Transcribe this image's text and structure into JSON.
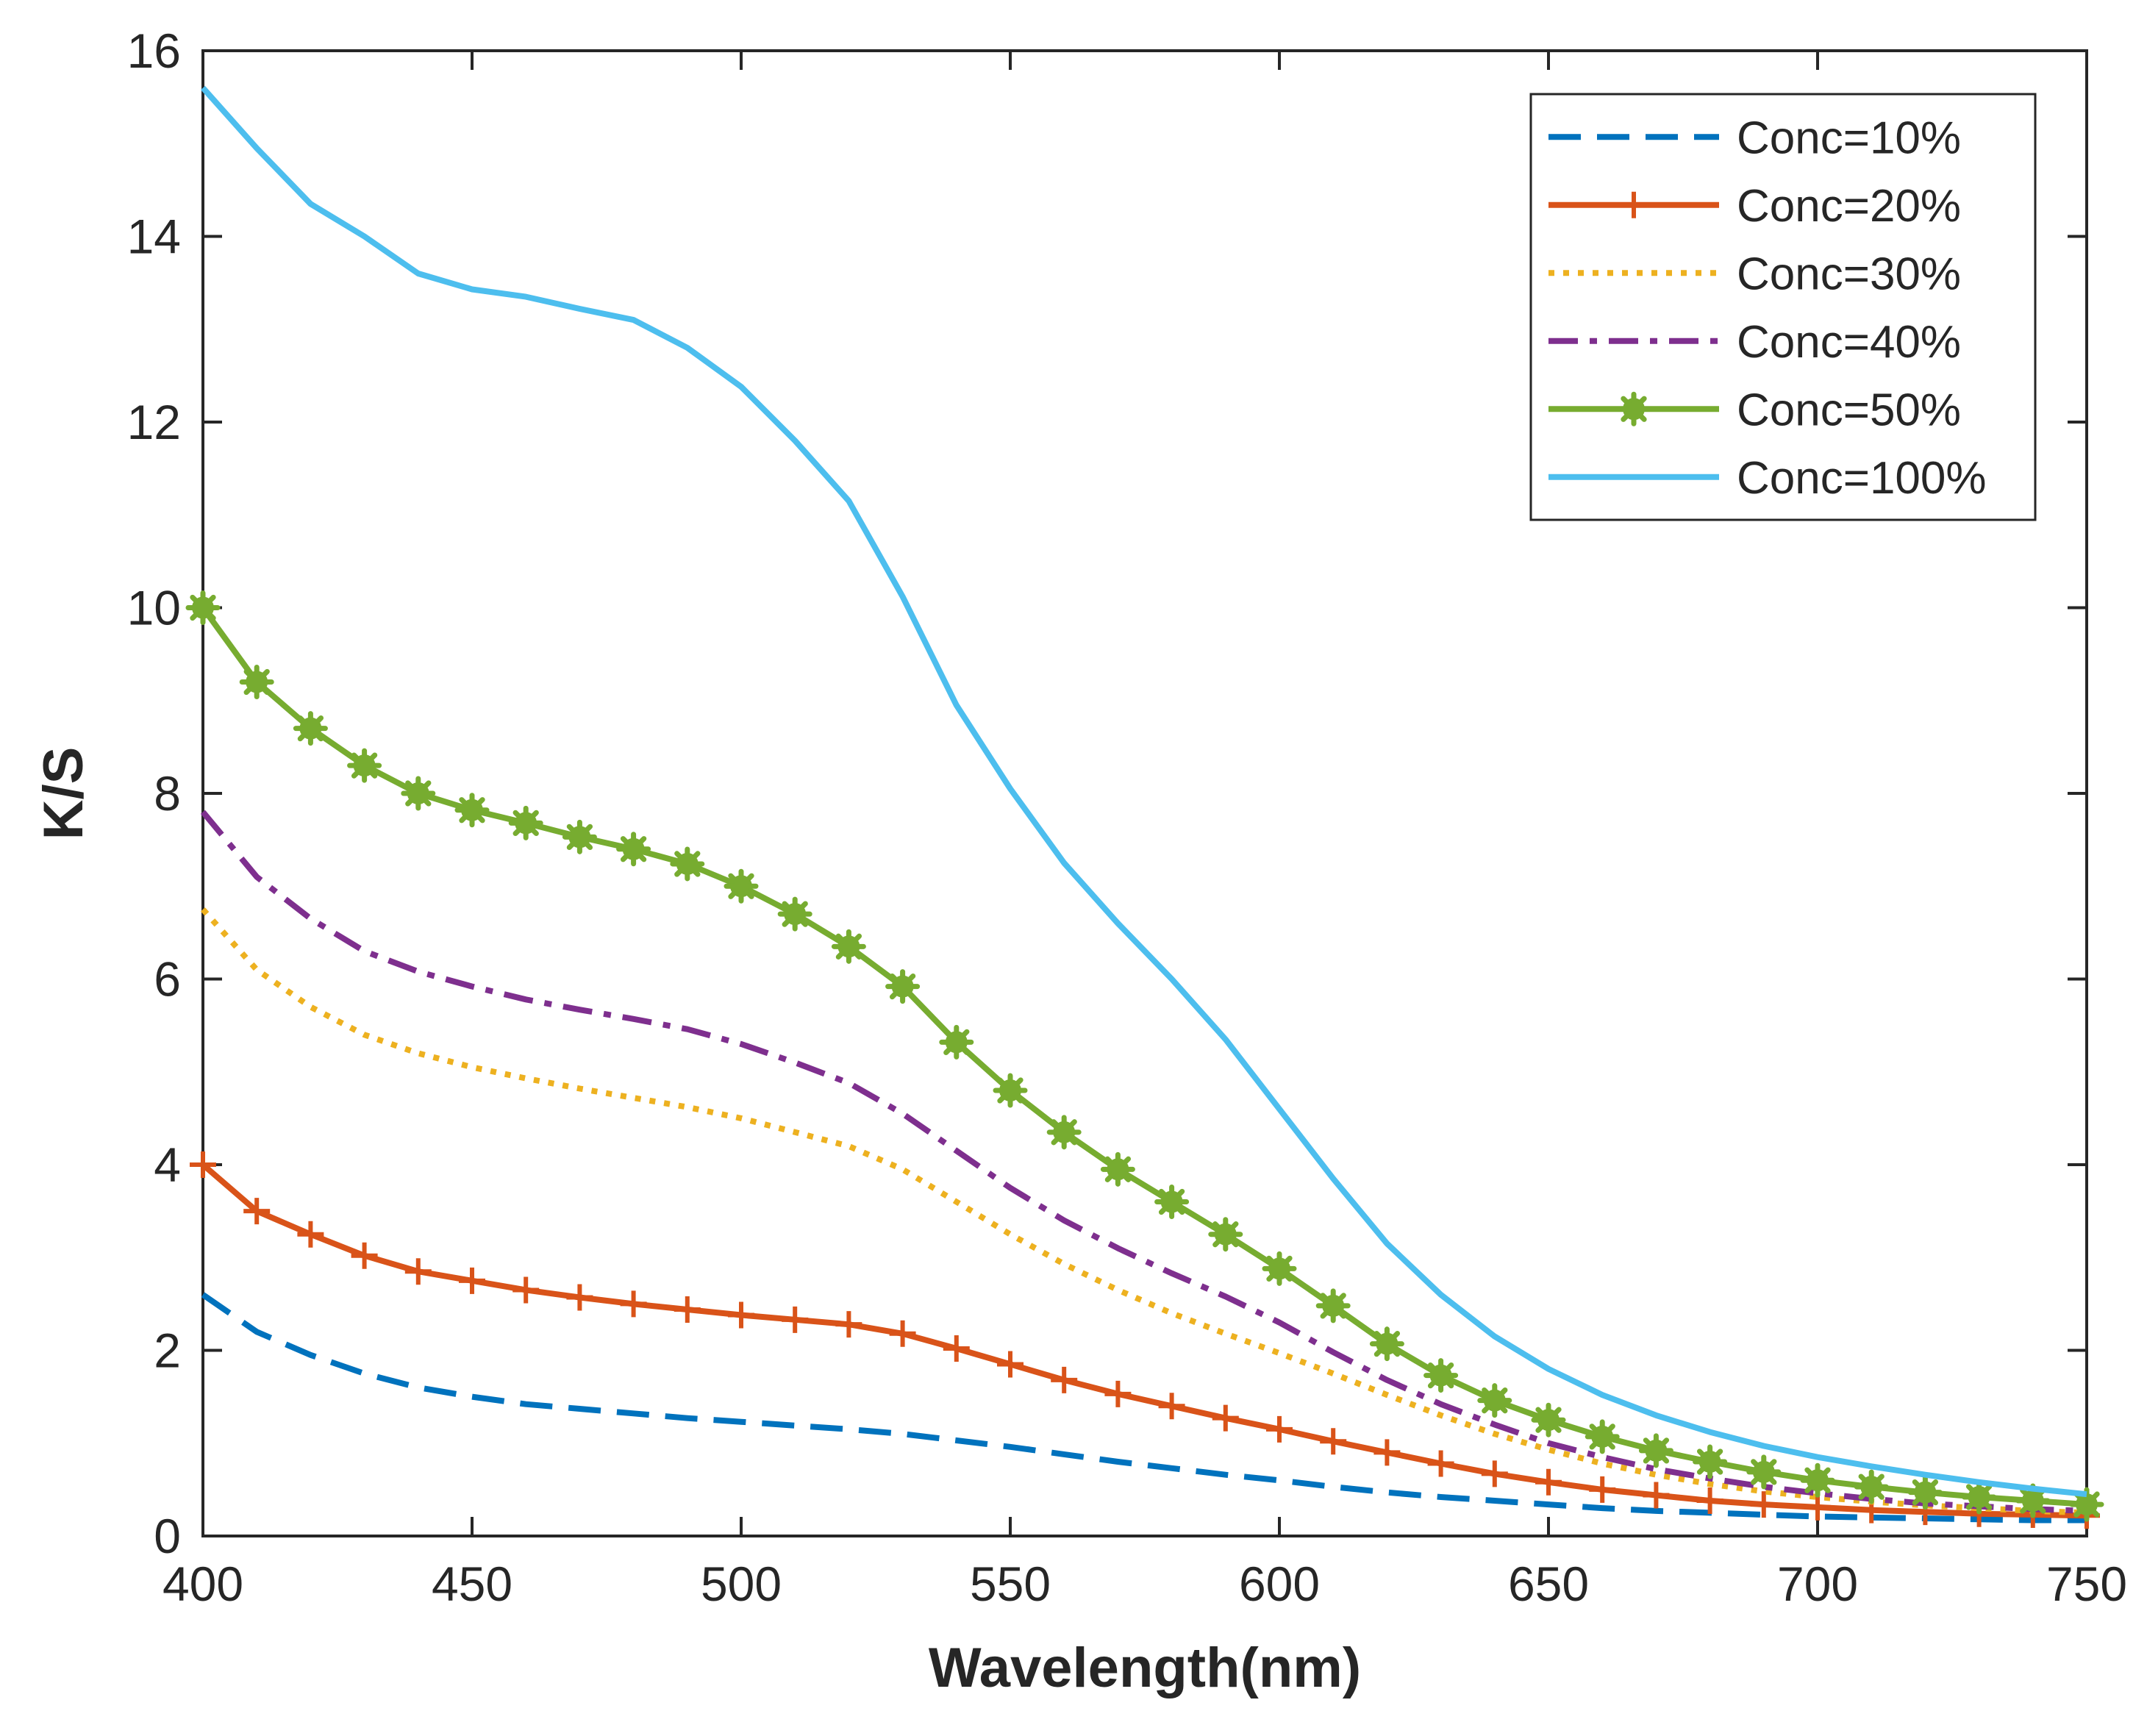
{
  "chart_data": {
    "type": "line",
    "title": "",
    "xlabel": "Wavelength(nm)",
    "ylabel": "K/S",
    "xlim": [
      400,
      750
    ],
    "ylim": [
      0,
      16
    ],
    "xticks": [
      400,
      450,
      500,
      550,
      600,
      650,
      700,
      750
    ],
    "yticks": [
      0,
      2,
      4,
      6,
      8,
      10,
      12,
      14,
      16
    ],
    "grid": false,
    "legend_position": "top-right",
    "x": [
      400,
      410,
      420,
      430,
      440,
      450,
      460,
      470,
      480,
      490,
      500,
      510,
      520,
      530,
      540,
      550,
      560,
      570,
      580,
      590,
      600,
      610,
      620,
      630,
      640,
      650,
      660,
      670,
      680,
      690,
      700,
      710,
      720,
      730,
      740,
      750
    ],
    "series": [
      {
        "name": "Conc=10%",
        "color": "#0072BD",
        "style": "dashed",
        "marker": "none",
        "values": [
          2.6,
          2.2,
          1.95,
          1.75,
          1.6,
          1.5,
          1.42,
          1.37,
          1.32,
          1.27,
          1.23,
          1.19,
          1.15,
          1.1,
          1.03,
          0.96,
          0.88,
          0.8,
          0.73,
          0.66,
          0.6,
          0.53,
          0.47,
          0.42,
          0.38,
          0.34,
          0.3,
          0.27,
          0.25,
          0.23,
          0.21,
          0.2,
          0.19,
          0.18,
          0.17,
          0.17
        ]
      },
      {
        "name": "Conc=20%",
        "color": "#D95319",
        "style": "solid",
        "marker": "plus",
        "values": [
          4.0,
          3.5,
          3.25,
          3.02,
          2.85,
          2.75,
          2.65,
          2.57,
          2.5,
          2.44,
          2.38,
          2.33,
          2.28,
          2.18,
          2.02,
          1.85,
          1.68,
          1.53,
          1.4,
          1.27,
          1.15,
          1.02,
          0.9,
          0.78,
          0.67,
          0.58,
          0.5,
          0.44,
          0.38,
          0.34,
          0.31,
          0.28,
          0.26,
          0.24,
          0.23,
          0.22
        ]
      },
      {
        "name": "Conc=30%",
        "color": "#EDB120",
        "style": "dotted",
        "marker": "none",
        "values": [
          6.75,
          6.1,
          5.7,
          5.4,
          5.2,
          5.05,
          4.93,
          4.82,
          4.72,
          4.62,
          4.5,
          4.35,
          4.2,
          3.95,
          3.6,
          3.25,
          2.93,
          2.65,
          2.4,
          2.18,
          1.97,
          1.75,
          1.52,
          1.3,
          1.1,
          0.93,
          0.78,
          0.66,
          0.56,
          0.48,
          0.42,
          0.37,
          0.33,
          0.3,
          0.27,
          0.25
        ]
      },
      {
        "name": "Conc=40%",
        "color": "#7E2F8E",
        "style": "dashdot",
        "marker": "none",
        "values": [
          7.8,
          7.1,
          6.65,
          6.3,
          6.08,
          5.92,
          5.78,
          5.67,
          5.57,
          5.46,
          5.3,
          5.1,
          4.88,
          4.55,
          4.15,
          3.75,
          3.4,
          3.1,
          2.83,
          2.58,
          2.3,
          1.98,
          1.68,
          1.42,
          1.2,
          1.0,
          0.85,
          0.72,
          0.62,
          0.53,
          0.46,
          0.4,
          0.35,
          0.32,
          0.29,
          0.27
        ]
      },
      {
        "name": "Conc=50%",
        "color": "#77AC30",
        "style": "solid",
        "marker": "asterisk",
        "values": [
          10.0,
          9.2,
          8.7,
          8.3,
          8.0,
          7.82,
          7.68,
          7.53,
          7.4,
          7.24,
          7.0,
          6.7,
          6.35,
          5.92,
          5.32,
          4.8,
          4.35,
          3.95,
          3.6,
          3.25,
          2.88,
          2.48,
          2.07,
          1.73,
          1.46,
          1.25,
          1.07,
          0.92,
          0.8,
          0.69,
          0.6,
          0.53,
          0.47,
          0.42,
          0.38,
          0.34
        ]
      },
      {
        "name": "Conc=100%",
        "color": "#4DBEEE",
        "style": "solid",
        "marker": "none",
        "values": [
          15.6,
          14.95,
          14.35,
          14.0,
          13.6,
          13.43,
          13.35,
          13.22,
          13.1,
          12.8,
          12.38,
          11.8,
          11.15,
          10.12,
          8.95,
          8.05,
          7.25,
          6.6,
          6.0,
          5.35,
          4.6,
          3.85,
          3.15,
          2.6,
          2.15,
          1.8,
          1.52,
          1.3,
          1.12,
          0.97,
          0.85,
          0.75,
          0.66,
          0.58,
          0.51,
          0.45
        ]
      }
    ]
  }
}
